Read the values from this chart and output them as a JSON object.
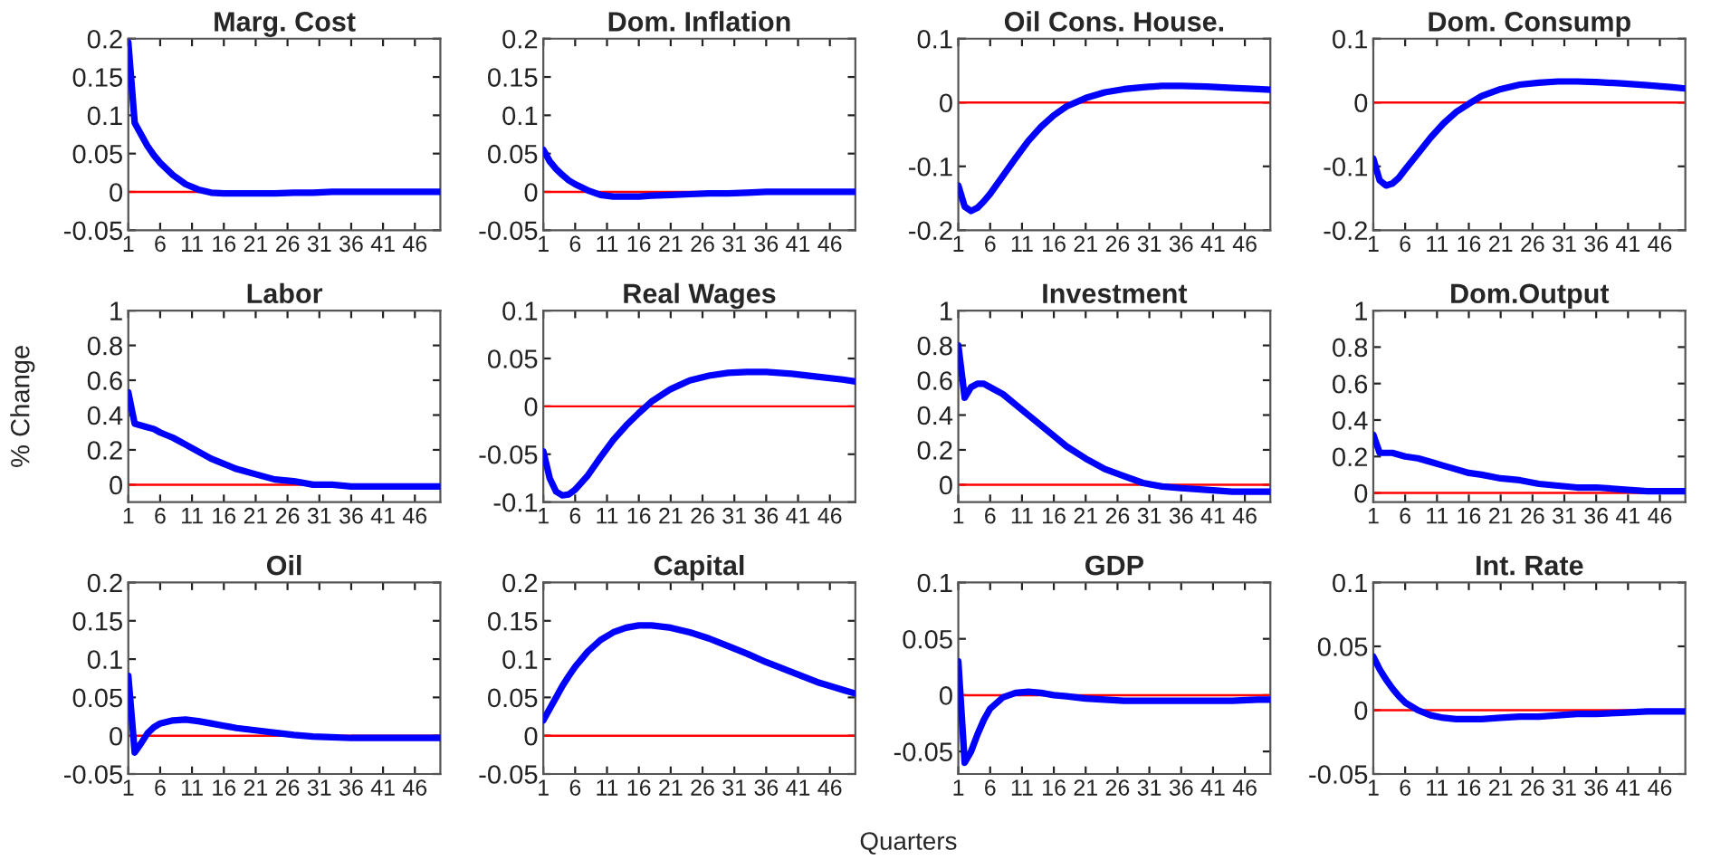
{
  "chart_data": [
    {
      "type": "line",
      "title": "Marg. Cost",
      "x": [
        1,
        2,
        3,
        4,
        5,
        6,
        8,
        10,
        12,
        14,
        16,
        18,
        21,
        24,
        27,
        30,
        33,
        36,
        40,
        44,
        48,
        50
      ],
      "series": [
        {
          "color": "#0000ff",
          "values": [
            0.195,
            0.09,
            0.075,
            0.06,
            0.048,
            0.038,
            0.022,
            0.01,
            0.003,
            -0.001,
            -0.002,
            -0.002,
            -0.002,
            -0.002,
            -0.001,
            -0.001,
            0,
            0,
            0,
            0,
            0,
            0
          ]
        }
      ],
      "xlim": [
        1,
        50
      ],
      "xticks": [
        1,
        6,
        11,
        16,
        21,
        26,
        31,
        36,
        41,
        46
      ],
      "ylim": [
        -0.05,
        0.2
      ],
      "yticks": [
        -0.05,
        0,
        0.05,
        0.1,
        0.15,
        0.2
      ],
      "ref_lines": [
        {
          "axis": "y",
          "value": 0,
          "color": "#ff0000"
        }
      ],
      "grid": false
    },
    {
      "type": "line",
      "title": "Dom. Inflation",
      "x": [
        1,
        2,
        3,
        4,
        5,
        6,
        8,
        10,
        12,
        14,
        16,
        18,
        21,
        24,
        27,
        30,
        33,
        36,
        40,
        44,
        48,
        50
      ],
      "series": [
        {
          "color": "#0000ff",
          "values": [
            0.055,
            0.04,
            0.03,
            0.022,
            0.015,
            0.01,
            0.002,
            -0.004,
            -0.006,
            -0.006,
            -0.006,
            -0.005,
            -0.004,
            -0.003,
            -0.002,
            -0.002,
            -0.001,
            0,
            0,
            0,
            0,
            0
          ]
        }
      ],
      "xlim": [
        1,
        50
      ],
      "xticks": [
        1,
        6,
        11,
        16,
        21,
        26,
        31,
        36,
        41,
        46
      ],
      "ylim": [
        -0.05,
        0.2
      ],
      "yticks": [
        -0.05,
        0,
        0.05,
        0.1,
        0.15,
        0.2
      ],
      "ref_lines": [
        {
          "axis": "y",
          "value": 0,
          "color": "#ff0000"
        }
      ],
      "grid": false
    },
    {
      "type": "line",
      "title": "Oil Cons. House.",
      "x": [
        1,
        2,
        3,
        4,
        5,
        6,
        8,
        10,
        12,
        14,
        16,
        18,
        21,
        24,
        27,
        30,
        33,
        36,
        40,
        44,
        48,
        50
      ],
      "series": [
        {
          "color": "#0000ff",
          "values": [
            -0.13,
            -0.163,
            -0.17,
            -0.165,
            -0.155,
            -0.143,
            -0.115,
            -0.087,
            -0.06,
            -0.038,
            -0.02,
            -0.006,
            0.007,
            0.016,
            0.021,
            0.024,
            0.026,
            0.026,
            0.025,
            0.023,
            0.021,
            0.02
          ]
        }
      ],
      "xlim": [
        1,
        50
      ],
      "xticks": [
        1,
        6,
        11,
        16,
        21,
        26,
        31,
        36,
        41,
        46
      ],
      "ylim": [
        -0.2,
        0.1
      ],
      "yticks": [
        -0.2,
        -0.1,
        0,
        0.1
      ],
      "ref_lines": [
        {
          "axis": "y",
          "value": 0,
          "color": "#ff0000"
        }
      ],
      "grid": false
    },
    {
      "type": "line",
      "title": "Dom. Consump",
      "x": [
        1,
        2,
        3,
        4,
        5,
        6,
        8,
        10,
        12,
        14,
        16,
        18,
        21,
        24,
        27,
        30,
        33,
        36,
        40,
        44,
        48,
        50
      ],
      "series": [
        {
          "color": "#0000ff",
          "values": [
            -0.088,
            -0.122,
            -0.13,
            -0.127,
            -0.118,
            -0.105,
            -0.08,
            -0.055,
            -0.033,
            -0.015,
            -0.002,
            0.01,
            0.021,
            0.028,
            0.031,
            0.033,
            0.033,
            0.032,
            0.03,
            0.027,
            0.024,
            0.022
          ]
        }
      ],
      "xlim": [
        1,
        50
      ],
      "xticks": [
        1,
        6,
        11,
        16,
        21,
        26,
        31,
        36,
        41,
        46
      ],
      "ylim": [
        -0.2,
        0.1
      ],
      "yticks": [
        -0.2,
        -0.1,
        0,
        0.1
      ],
      "ref_lines": [
        {
          "axis": "y",
          "value": 0,
          "color": "#ff0000"
        }
      ],
      "grid": false
    },
    {
      "type": "line",
      "title": "Labor",
      "ylabel": "% Change",
      "x": [
        1,
        2,
        3,
        4,
        5,
        6,
        8,
        10,
        12,
        14,
        16,
        18,
        21,
        24,
        27,
        30,
        33,
        36,
        40,
        44,
        48,
        50
      ],
      "series": [
        {
          "color": "#0000ff",
          "values": [
            0.53,
            0.35,
            0.34,
            0.33,
            0.32,
            0.3,
            0.27,
            0.23,
            0.19,
            0.15,
            0.12,
            0.09,
            0.06,
            0.03,
            0.02,
            0.0,
            0.0,
            -0.01,
            -0.01,
            -0.01,
            -0.01,
            -0.01
          ]
        }
      ],
      "xlim": [
        1,
        50
      ],
      "xticks": [
        1,
        6,
        11,
        16,
        21,
        26,
        31,
        36,
        41,
        46
      ],
      "ylim": [
        -0.1,
        1
      ],
      "yticks": [
        0,
        0.2,
        0.4,
        0.6,
        0.8,
        1
      ],
      "ref_lines": [
        {
          "axis": "y",
          "value": 0,
          "color": "#ff0000"
        }
      ],
      "grid": false
    },
    {
      "type": "line",
      "title": "Real Wages",
      "x": [
        1,
        2,
        3,
        4,
        5,
        6,
        8,
        10,
        12,
        14,
        16,
        18,
        21,
        24,
        27,
        30,
        33,
        36,
        40,
        44,
        48,
        50
      ],
      "series": [
        {
          "color": "#0000ff",
          "values": [
            -0.047,
            -0.075,
            -0.089,
            -0.093,
            -0.092,
            -0.087,
            -0.072,
            -0.053,
            -0.035,
            -0.02,
            -0.007,
            0.005,
            0.018,
            0.027,
            0.032,
            0.035,
            0.036,
            0.036,
            0.034,
            0.031,
            0.028,
            0.026
          ]
        }
      ],
      "xlim": [
        1,
        50
      ],
      "xticks": [
        1,
        6,
        11,
        16,
        21,
        26,
        31,
        36,
        41,
        46
      ],
      "ylim": [
        -0.1,
        0.1
      ],
      "yticks": [
        -0.1,
        -0.05,
        0,
        0.05,
        0.1
      ],
      "ref_lines": [
        {
          "axis": "y",
          "value": 0,
          "color": "#ff0000"
        }
      ],
      "grid": false
    },
    {
      "type": "line",
      "title": "Investment",
      "x": [
        1,
        2,
        3,
        4,
        5,
        6,
        8,
        10,
        12,
        14,
        16,
        18,
        21,
        24,
        27,
        30,
        33,
        36,
        40,
        44,
        48,
        50
      ],
      "series": [
        {
          "color": "#0000ff",
          "values": [
            0.8,
            0.5,
            0.56,
            0.58,
            0.58,
            0.56,
            0.52,
            0.46,
            0.4,
            0.34,
            0.28,
            0.22,
            0.15,
            0.09,
            0.05,
            0.01,
            -0.01,
            -0.02,
            -0.03,
            -0.04,
            -0.04,
            -0.04
          ]
        }
      ],
      "xlim": [
        1,
        50
      ],
      "xticks": [
        1,
        6,
        11,
        16,
        21,
        26,
        31,
        36,
        41,
        46
      ],
      "ylim": [
        -0.1,
        1
      ],
      "yticks": [
        0,
        0.2,
        0.4,
        0.6,
        0.8,
        1
      ],
      "ref_lines": [
        {
          "axis": "y",
          "value": 0,
          "color": "#ff0000"
        }
      ],
      "grid": false
    },
    {
      "type": "line",
      "title": "Dom.Output",
      "x": [
        1,
        2,
        3,
        4,
        5,
        6,
        8,
        10,
        12,
        14,
        16,
        18,
        21,
        24,
        27,
        30,
        33,
        36,
        40,
        44,
        48,
        50
      ],
      "series": [
        {
          "color": "#0000ff",
          "values": [
            0.32,
            0.22,
            0.22,
            0.22,
            0.21,
            0.2,
            0.19,
            0.17,
            0.15,
            0.13,
            0.11,
            0.1,
            0.08,
            0.07,
            0.05,
            0.04,
            0.03,
            0.03,
            0.02,
            0.01,
            0.01,
            0.01
          ]
        }
      ],
      "xlim": [
        1,
        50
      ],
      "xticks": [
        1,
        6,
        11,
        16,
        21,
        26,
        31,
        36,
        41,
        46
      ],
      "ylim": [
        -0.05,
        1
      ],
      "yticks": [
        0,
        0.2,
        0.4,
        0.6,
        0.8,
        1
      ],
      "ref_lines": [
        {
          "axis": "y",
          "value": 0,
          "color": "#ff0000"
        }
      ],
      "grid": false
    },
    {
      "type": "line",
      "title": "Oil",
      "x": [
        1,
        2,
        3,
        4,
        5,
        6,
        8,
        10,
        12,
        14,
        16,
        18,
        21,
        24,
        27,
        30,
        33,
        36,
        40,
        44,
        48,
        50
      ],
      "series": [
        {
          "color": "#0000ff",
          "values": [
            0.078,
            -0.022,
            -0.01,
            0.003,
            0.011,
            0.016,
            0.02,
            0.021,
            0.019,
            0.016,
            0.013,
            0.01,
            0.007,
            0.004,
            0.001,
            -0.001,
            -0.002,
            -0.003,
            -0.003,
            -0.003,
            -0.003,
            -0.003
          ]
        }
      ],
      "xlim": [
        1,
        50
      ],
      "xticks": [
        1,
        6,
        11,
        16,
        21,
        26,
        31,
        36,
        41,
        46
      ],
      "ylim": [
        -0.05,
        0.2
      ],
      "yticks": [
        -0.05,
        0,
        0.05,
        0.1,
        0.15,
        0.2
      ],
      "ref_lines": [
        {
          "axis": "y",
          "value": 0,
          "color": "#ff0000"
        }
      ],
      "grid": false
    },
    {
      "type": "line",
      "title": "Capital",
      "xlabel": "Quarters",
      "x": [
        1,
        2,
        3,
        4,
        5,
        6,
        8,
        10,
        12,
        14,
        16,
        18,
        21,
        24,
        27,
        30,
        33,
        36,
        40,
        44,
        48,
        50
      ],
      "series": [
        {
          "color": "#0000ff",
          "values": [
            0.02,
            0.035,
            0.05,
            0.065,
            0.078,
            0.09,
            0.11,
            0.125,
            0.135,
            0.141,
            0.144,
            0.144,
            0.141,
            0.135,
            0.127,
            0.117,
            0.107,
            0.096,
            0.083,
            0.07,
            0.06,
            0.055
          ]
        }
      ],
      "xlim": [
        1,
        50
      ],
      "xticks": [
        1,
        6,
        11,
        16,
        21,
        26,
        31,
        36,
        41,
        46
      ],
      "ylim": [
        -0.05,
        0.2
      ],
      "yticks": [
        -0.05,
        0,
        0.05,
        0.1,
        0.15,
        0.2
      ],
      "ref_lines": [
        {
          "axis": "y",
          "value": 0,
          "color": "#ff0000"
        }
      ],
      "grid": false
    },
    {
      "type": "line",
      "title": "GDP",
      "x": [
        1,
        2,
        3,
        4,
        5,
        6,
        8,
        10,
        12,
        14,
        16,
        18,
        21,
        24,
        27,
        30,
        33,
        36,
        40,
        44,
        48,
        50
      ],
      "series": [
        {
          "color": "#0000ff",
          "values": [
            0.03,
            -0.06,
            -0.05,
            -0.035,
            -0.022,
            -0.012,
            -0.002,
            0.002,
            0.003,
            0.002,
            0.0,
            -0.001,
            -0.003,
            -0.004,
            -0.005,
            -0.005,
            -0.005,
            -0.005,
            -0.005,
            -0.005,
            -0.004,
            -0.004
          ]
        }
      ],
      "xlim": [
        1,
        50
      ],
      "xticks": [
        1,
        6,
        11,
        16,
        21,
        26,
        31,
        36,
        41,
        46
      ],
      "ylim": [
        -0.07,
        0.1
      ],
      "yticks": [
        -0.05,
        0,
        0.05,
        0.1
      ],
      "ref_lines": [
        {
          "axis": "y",
          "value": 0,
          "color": "#ff0000"
        }
      ],
      "grid": false
    },
    {
      "type": "line",
      "title": "Int. Rate",
      "x": [
        1,
        2,
        3,
        4,
        5,
        6,
        8,
        10,
        12,
        14,
        16,
        18,
        21,
        24,
        27,
        30,
        33,
        36,
        40,
        44,
        48,
        50
      ],
      "series": [
        {
          "color": "#0000ff",
          "values": [
            0.042,
            0.032,
            0.024,
            0.017,
            0.011,
            0.006,
            0.0,
            -0.004,
            -0.006,
            -0.007,
            -0.007,
            -0.007,
            -0.006,
            -0.005,
            -0.005,
            -0.004,
            -0.003,
            -0.003,
            -0.002,
            -0.001,
            -0.001,
            -0.001
          ]
        }
      ],
      "xlim": [
        1,
        50
      ],
      "xticks": [
        1,
        6,
        11,
        16,
        21,
        26,
        31,
        36,
        41,
        46
      ],
      "ylim": [
        -0.05,
        0.1
      ],
      "yticks": [
        -0.05,
        0,
        0.05,
        0.1
      ],
      "ref_lines": [
        {
          "axis": "y",
          "value": 0,
          "color": "#ff0000"
        }
      ],
      "grid": false
    }
  ]
}
